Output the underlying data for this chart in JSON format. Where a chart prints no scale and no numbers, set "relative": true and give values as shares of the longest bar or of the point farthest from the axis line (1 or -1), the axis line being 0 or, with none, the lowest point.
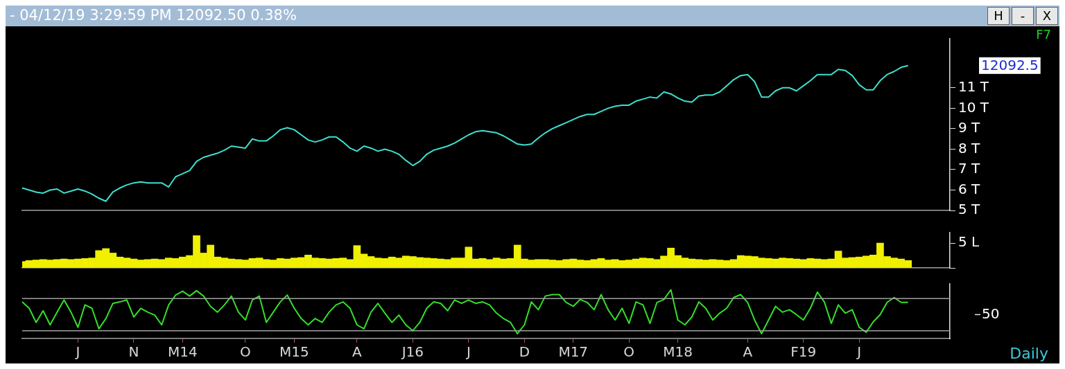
{
  "chart_data": [
    {
      "type": "line",
      "title": "- 04/12/19 3:29:59 PM 12092.50 0.38%",
      "annotations": [
        "12092.5",
        "F7",
        "H",
        "-",
        "X"
      ],
      "series": [
        {
          "color": "#3ee0d0",
          "values": [
            6.1,
            6,
            5.9,
            5.85,
            6,
            6.05,
            5.85,
            5.95,
            6.05,
            5.95,
            5.8,
            5.6,
            5.45,
            5.9,
            6.1,
            6.25,
            6.35,
            6.4,
            6.35,
            6.35,
            6.35,
            6.15,
            6.65,
            6.8,
            6.95,
            7.4,
            7.6,
            7.7,
            7.8,
            7.95,
            8.15,
            8.1,
            8.05,
            8.5,
            8.4,
            8.4,
            8.65,
            8.95,
            9.05,
            8.95,
            8.7,
            8.45,
            8.35,
            8.45,
            8.6,
            8.6,
            8.35,
            8.05,
            7.9,
            8.15,
            8.05,
            7.9,
            8,
            7.9,
            7.75,
            7.45,
            7.2,
            7.4,
            7.75,
            7.95,
            8.05,
            8.15,
            8.3,
            8.5,
            8.7,
            8.85,
            8.9,
            8.85,
            8.8,
            8.65,
            8.45,
            8.25,
            8.2,
            8.25,
            8.55,
            8.8,
            9,
            9.15,
            9.3,
            9.45,
            9.6,
            9.7,
            9.7,
            9.85,
            10,
            10.1,
            10.15,
            10.15,
            10.35,
            10.45,
            10.55,
            10.5,
            10.8,
            10.7,
            10.5,
            10.35,
            10.3,
            10.6,
            10.65,
            10.65,
            10.8,
            11.1,
            11.4,
            11.6,
            11.65,
            11.3,
            10.55,
            10.55,
            10.85,
            11,
            11,
            10.85,
            11.1,
            11.35,
            11.65,
            11.65,
            11.65,
            11.9,
            11.85,
            11.6,
            11.15,
            10.9,
            10.9,
            11.35,
            11.65,
            11.8,
            12,
            12.09,
            null,
            null,
            null,
            null,
            null,
            null
          ]
        }
      ],
      "ylim": [
        5,
        13.4
      ],
      "yticks": [
        {
          "value": 5,
          "label": "5 T"
        },
        {
          "value": 6,
          "label": "6 T"
        },
        {
          "value": 7,
          "label": "7 T"
        },
        {
          "value": 8,
          "label": "8 T"
        },
        {
          "value": 9,
          "label": "9 T"
        },
        {
          "value": 10,
          "label": "10 T"
        },
        {
          "value": 11,
          "label": "11 T"
        }
      ],
      "tick_labels": "y",
      "grid": false,
      "legend": false,
      "marker": "none",
      "line_style": "solid"
    },
    {
      "type": "bar",
      "series": [
        {
          "color": "#f0f000",
          "values": [
            1.3,
            1.5,
            1.6,
            1.7,
            1.6,
            1.7,
            1.8,
            1.7,
            1.8,
            1.9,
            2,
            3.5,
            3.9,
            3,
            2.2,
            2,
            1.8,
            1.6,
            1.7,
            1.8,
            1.7,
            2,
            1.9,
            2.2,
            2.5,
            6.5,
            3,
            4.6,
            2.2,
            2,
            1.8,
            1.7,
            1.6,
            1.9,
            2,
            1.7,
            1.6,
            1.9,
            1.8,
            2,
            2.1,
            2.6,
            2,
            1.9,
            1.8,
            1.9,
            2,
            1.7,
            4.5,
            2.8,
            2.3,
            2,
            1.9,
            2.2,
            2,
            2.4,
            2.3,
            2.1,
            2,
            1.9,
            1.8,
            1.7,
            2,
            2,
            4.2,
            1.8,
            1.9,
            1.7,
            2,
            1.8,
            1.9,
            4.6,
            1.8,
            1.6,
            1.7,
            1.7,
            1.6,
            1.5,
            1.7,
            1.8,
            1.6,
            1.5,
            1.7,
            1.9,
            1.6,
            1.7,
            1.5,
            1.6,
            1.8,
            2,
            1.9,
            1.7,
            2.4,
            4,
            2.5,
            2,
            1.8,
            1.7,
            1.6,
            1.7,
            1.6,
            1.5,
            1.7,
            2.5,
            2.4,
            2.3,
            2,
            1.9,
            1.8,
            2,
            1.9,
            1.8,
            1.7,
            1.9,
            1.8,
            1.7,
            1.8,
            3.4,
            2,
            2.1,
            2.2,
            2.4,
            2.6,
            5,
            2.3,
            2,
            1.8,
            1.5,
            null,
            null,
            null,
            null,
            null,
            null
          ]
        }
      ],
      "ylim": [
        0,
        7.1
      ],
      "yticks": [
        {
          "value": 0,
          "label": null
        },
        {
          "value": 5,
          "label": "5 L"
        }
      ],
      "tick_labels": "y",
      "grid": false,
      "legend": false
    },
    {
      "type": "line",
      "relative": true,
      "annotations": [
        "50",
        "Daily"
      ],
      "categories": [
        null,
        null,
        null,
        null,
        null,
        null,
        null,
        null,
        "J",
        null,
        null,
        null,
        null,
        null,
        null,
        null,
        "N",
        null,
        null,
        null,
        null,
        null,
        null,
        "M14",
        null,
        null,
        null,
        null,
        null,
        null,
        null,
        null,
        "O",
        null,
        null,
        null,
        null,
        null,
        null,
        "M15",
        null,
        null,
        null,
        null,
        null,
        null,
        null,
        null,
        "A",
        null,
        null,
        null,
        null,
        null,
        null,
        null,
        "J16",
        null,
        null,
        null,
        null,
        null,
        null,
        null,
        "J",
        null,
        null,
        null,
        null,
        null,
        null,
        null,
        "D",
        null,
        null,
        null,
        null,
        null,
        null,
        "M17",
        null,
        null,
        null,
        null,
        null,
        null,
        null,
        "O",
        null,
        null,
        null,
        null,
        null,
        null,
        "M18",
        null,
        null,
        null,
        null,
        null,
        null,
        null,
        null,
        null,
        "A",
        null,
        null,
        null,
        null,
        null,
        null,
        null,
        "F19",
        null,
        null,
        null,
        null,
        null,
        null,
        null,
        "J",
        null,
        null,
        null,
        null,
        null,
        null,
        null,
        null,
        null,
        null,
        null,
        null,
        null
      ],
      "series": [
        {
          "color": "#33e02a",
          "values": [
            0.75,
            0.62,
            0.33,
            0.57,
            0.28,
            0.54,
            0.79,
            0.54,
            0.23,
            0.69,
            0.62,
            0.2,
            0.41,
            0.72,
            0.75,
            0.79,
            0.44,
            0.62,
            0.54,
            0.48,
            0.28,
            0.69,
            0.89,
            0.97,
            0.87,
            0.98,
            0.87,
            0.66,
            0.54,
            0.69,
            0.87,
            0.54,
            0.38,
            0.79,
            0.87,
            0.33,
            0.54,
            0.75,
            0.89,
            0.62,
            0.41,
            0.28,
            0.41,
            0.33,
            0.54,
            0.69,
            0.75,
            0.62,
            0.28,
            0.2,
            0.54,
            0.72,
            0.52,
            0.33,
            0.48,
            0.28,
            0.16,
            0.33,
            0.62,
            0.75,
            0.72,
            0.57,
            0.79,
            0.72,
            0.79,
            0.72,
            0.75,
            0.69,
            0.52,
            0.41,
            0.33,
            0.1,
            0.28,
            0.75,
            0.59,
            0.87,
            0.9,
            0.9,
            0.74,
            0.66,
            0.8,
            0.74,
            0.59,
            0.9,
            0.59,
            0.38,
            0.62,
            0.31,
            0.75,
            0.69,
            0.31,
            0.74,
            0.8,
            1,
            0.38,
            0.28,
            0.44,
            0.75,
            0.62,
            0.38,
            0.52,
            0.62,
            0.84,
            0.9,
            0.74,
            0.38,
            0.1,
            0.38,
            0.66,
            0.54,
            0.59,
            0.49,
            0.38,
            0.62,
            0.95,
            0.75,
            0.31,
            0.69,
            0.52,
            0.59,
            0.23,
            0.13,
            0.34,
            0.49,
            0.74,
            0.84,
            0.74,
            0.74,
            null,
            null,
            null,
            null,
            null,
            null
          ]
        }
      ],
      "ref_lines": [
        {
          "axis": "y",
          "value": 0.82,
          "color": "#a0a0a0"
        },
        {
          "axis": "y",
          "value": 0.16,
          "color": "#a0a0a0"
        }
      ],
      "grid": false,
      "legend": false,
      "marker": "none",
      "line_style": "solid"
    }
  ]
}
